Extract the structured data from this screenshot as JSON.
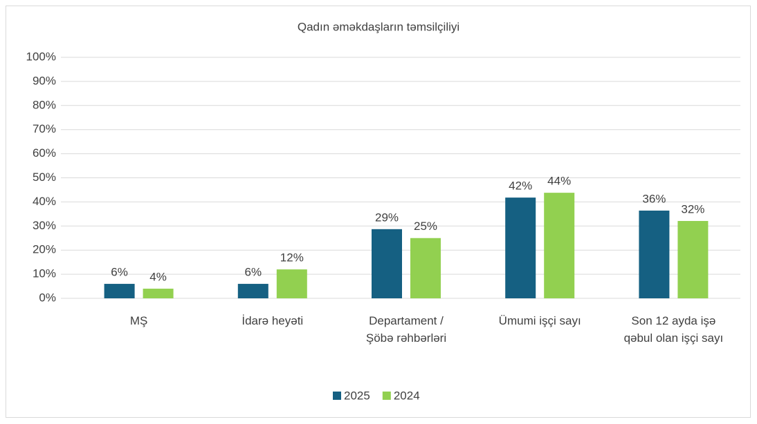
{
  "chart_data": {
    "type": "bar",
    "title": "Qadın əməkdaşların təmsilçiliyi",
    "categories": [
      "MŞ",
      "İdarə heyəti",
      "Departament /Şöbə rəhbərləri",
      "Ümumi işçi sayı",
      "Son 12 ayda işə qəbul olan işçi sayı"
    ],
    "series": [
      {
        "name": "2025",
        "color": "#156082",
        "values": [
          6,
          6,
          28.7,
          41.8,
          36.4
        ],
        "value_labels": [
          "6%",
          "6%",
          "29%",
          "42%",
          "36%"
        ]
      },
      {
        "name": "2024",
        "color": "#92d050",
        "values": [
          4,
          12,
          25,
          43.8,
          32.1
        ],
        "value_labels": [
          "4%",
          "12%",
          "25%",
          "44%",
          "32%"
        ]
      }
    ],
    "ylim": [
      0,
      100
    ],
    "yticks": [
      {
        "value": 0,
        "label": "0%"
      },
      {
        "value": 10,
        "label": "10%"
      },
      {
        "value": 20,
        "label": "20%"
      },
      {
        "value": 30,
        "label": "30%"
      },
      {
        "value": 40,
        "label": "40%"
      },
      {
        "value": 50,
        "label": "50%"
      },
      {
        "value": 60,
        "label": "60%"
      },
      {
        "value": 70,
        "label": "70%"
      },
      {
        "value": 80,
        "label": "80%"
      },
      {
        "value": 90,
        "label": "90%"
      },
      {
        "value": 100,
        "label": "100%"
      }
    ],
    "grid": true,
    "legend": "bottom"
  }
}
